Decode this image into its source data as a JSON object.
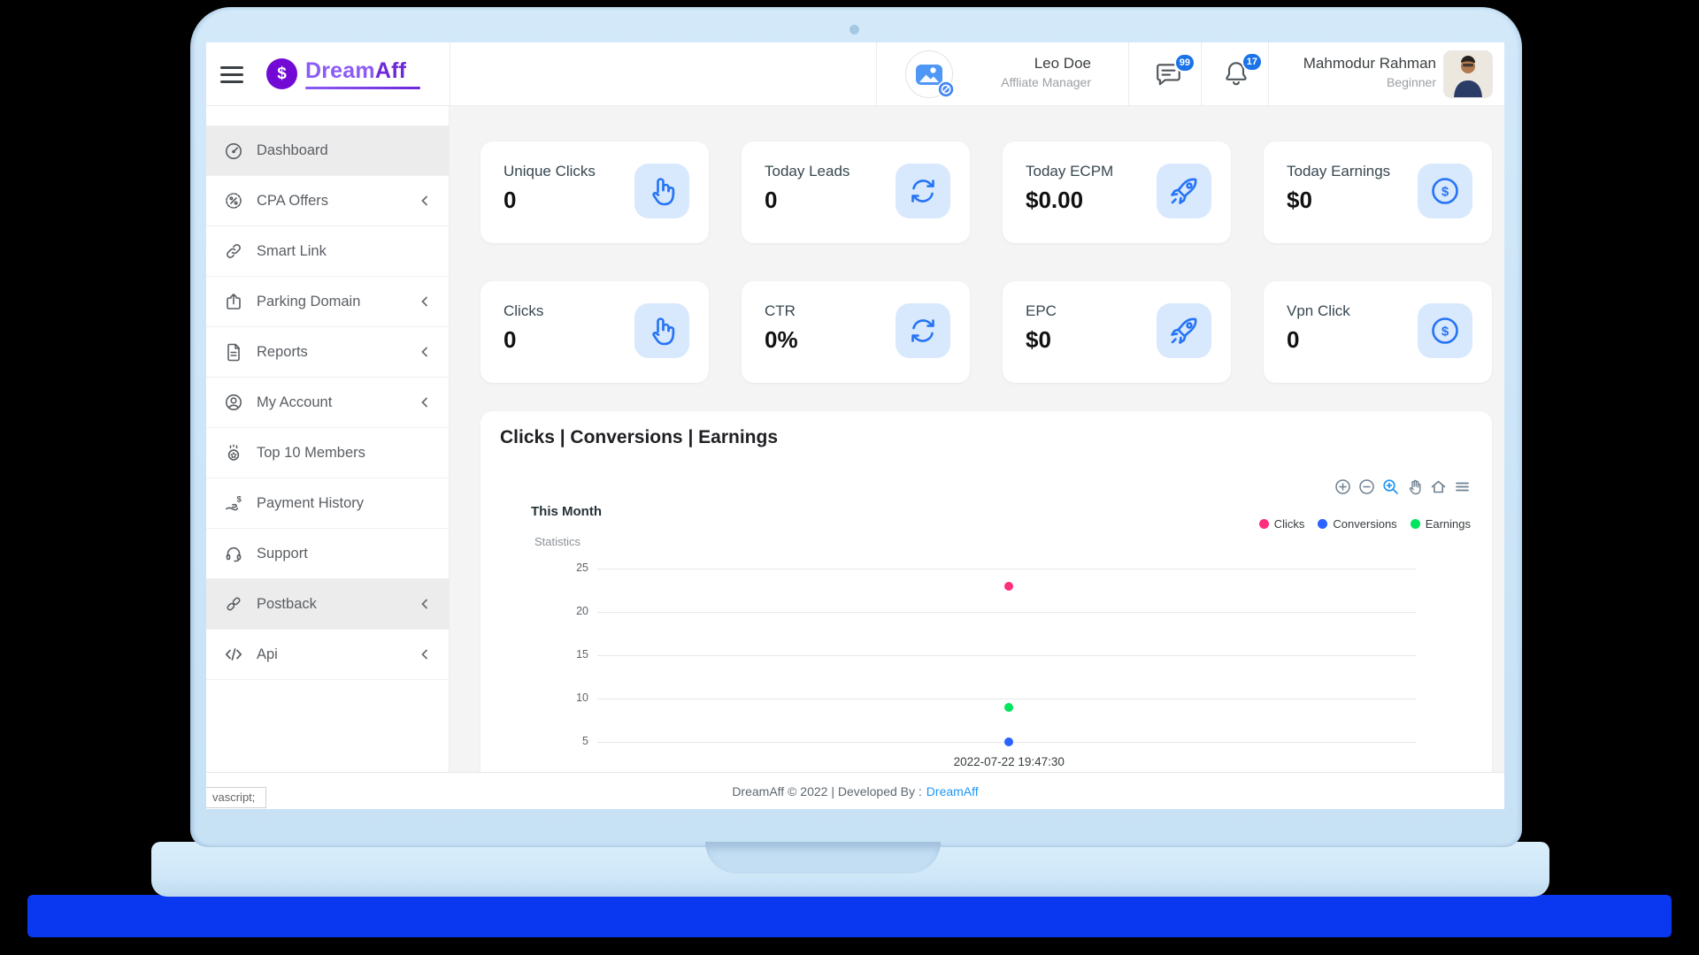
{
  "header": {
    "logo": {
      "symbol": "$",
      "brand_primary": "Dream",
      "brand_secondary": "Aff"
    },
    "manager_name": "Leo Doe",
    "manager_role": "Affliate Manager",
    "messages_badge": "99",
    "notifications_badge": "17",
    "user_name": "Mahmodur Rahman",
    "user_level": "Beginner"
  },
  "sidebar": {
    "items": [
      {
        "label": "Dashboard",
        "icon": "speedometer-icon",
        "active": true,
        "expandable": false
      },
      {
        "label": "CPA Offers",
        "icon": "badge-percent-icon",
        "active": false,
        "expandable": true
      },
      {
        "label": "Smart Link",
        "icon": "link-icon",
        "active": false,
        "expandable": false
      },
      {
        "label": "Parking Domain",
        "icon": "box-arrow-up-icon",
        "active": false,
        "expandable": true
      },
      {
        "label": "Reports",
        "icon": "file-text-icon",
        "active": false,
        "expandable": true
      },
      {
        "label": "My Account",
        "icon": "person-circle-icon",
        "active": false,
        "expandable": true
      },
      {
        "label": "Top 10 Members",
        "icon": "award-icon",
        "active": false,
        "expandable": false
      },
      {
        "label": "Payment History",
        "icon": "cash-hand-icon",
        "active": false,
        "expandable": false
      },
      {
        "label": "Support",
        "icon": "headset-icon",
        "active": false,
        "expandable": false
      },
      {
        "label": "Postback",
        "icon": "chain-icon",
        "active": true,
        "expandable": true
      },
      {
        "label": "Api",
        "icon": "code-icon",
        "active": false,
        "expandable": true
      }
    ]
  },
  "stats": {
    "cards": [
      {
        "label": "Unique Clicks",
        "value": "0",
        "icon": "hand-pointer-icon"
      },
      {
        "label": "Today Leads",
        "value": "0",
        "icon": "arrows-rotate-icon"
      },
      {
        "label": "Today ECPM",
        "value": "$0.00",
        "icon": "rocket-icon"
      },
      {
        "label": "Today Earnings",
        "value": "$0",
        "icon": "dollar-circle-icon"
      },
      {
        "label": "Clicks",
        "value": "0",
        "icon": "hand-pointer-icon"
      },
      {
        "label": "CTR",
        "value": "0%",
        "icon": "arrows-rotate-icon"
      },
      {
        "label": "EPC",
        "value": "$0",
        "icon": "rocket-icon"
      },
      {
        "label": "Vpn Click",
        "value": "0",
        "icon": "dollar-circle-icon"
      }
    ]
  },
  "chart_section": {
    "heading": "Clicks | Conversions | Earnings"
  },
  "chart_data": {
    "type": "scatter",
    "title": "This Month",
    "ylabel": "Statistics",
    "xlabel": "",
    "x": [
      "2022-07-22 19:47:30"
    ],
    "series": [
      {
        "name": "Clicks",
        "color": "#ff2e7d",
        "values": [
          23
        ]
      },
      {
        "name": "Conversions",
        "color": "#2962ff",
        "values": [
          5
        ]
      },
      {
        "name": "Earnings",
        "color": "#00e55e",
        "values": [
          9
        ]
      }
    ],
    "yticks": [
      25,
      20,
      15,
      10,
      5
    ],
    "ylim": [
      5,
      25
    ],
    "grid": true,
    "legend_position": "top-right"
  },
  "footer": {
    "text": "DreamAff © 2022 | Developed By :",
    "link": "DreamAff"
  },
  "status_bar": {
    "text": "vascript;"
  },
  "colors": {
    "accent": "#2574f5",
    "badge": "#1a73e8",
    "brand_purple": "#7209d4",
    "laptop_base": "#0a38f0",
    "chart_toolbar_active": "#2196f3"
  }
}
